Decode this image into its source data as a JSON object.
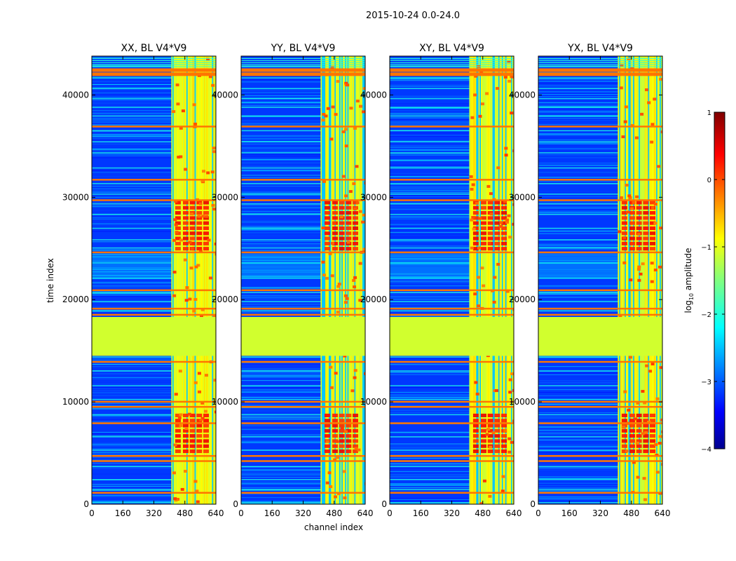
{
  "suptitle": "2015-10-24 0.0-24.0",
  "chart_data": {
    "type": "heatmap",
    "panels": [
      {
        "title": "XX, BL V4*V9",
        "polarization": "XX",
        "baseline": "V4*V9"
      },
      {
        "title": "YY, BL V4*V9",
        "polarization": "YY",
        "baseline": "V4*V9"
      },
      {
        "title": "XY, BL V4*V9",
        "polarization": "XY",
        "baseline": "V4*V9"
      },
      {
        "title": "YX, BL V4*V9",
        "polarization": "YX",
        "baseline": "V4*V9"
      }
    ],
    "xlabel": "channel index",
    "ylabel": "time index",
    "xlim": [
      0,
      640
    ],
    "ylim": [
      0,
      43800
    ],
    "xticks": [
      0,
      160,
      320,
      480,
      640
    ],
    "yticks": [
      0,
      10000,
      20000,
      30000,
      40000
    ],
    "colorbar": {
      "label_prefix": "log",
      "label_sub": "10",
      "label_suffix": " amplitude",
      "range": [
        -4,
        1
      ],
      "ticks": [
        -4,
        -3,
        -2,
        -1,
        0,
        1
      ],
      "colormap": "jet"
    },
    "features": {
      "flagged_time_range": [
        14500,
        18300
      ],
      "flagged_value": -1.1,
      "rfi_channel_range": [
        410,
        640
      ],
      "background_level": -3.1,
      "strong_rfi_time_ranges": [
        [
          24800,
          29500
        ],
        [
          5000,
          9000
        ]
      ]
    }
  }
}
